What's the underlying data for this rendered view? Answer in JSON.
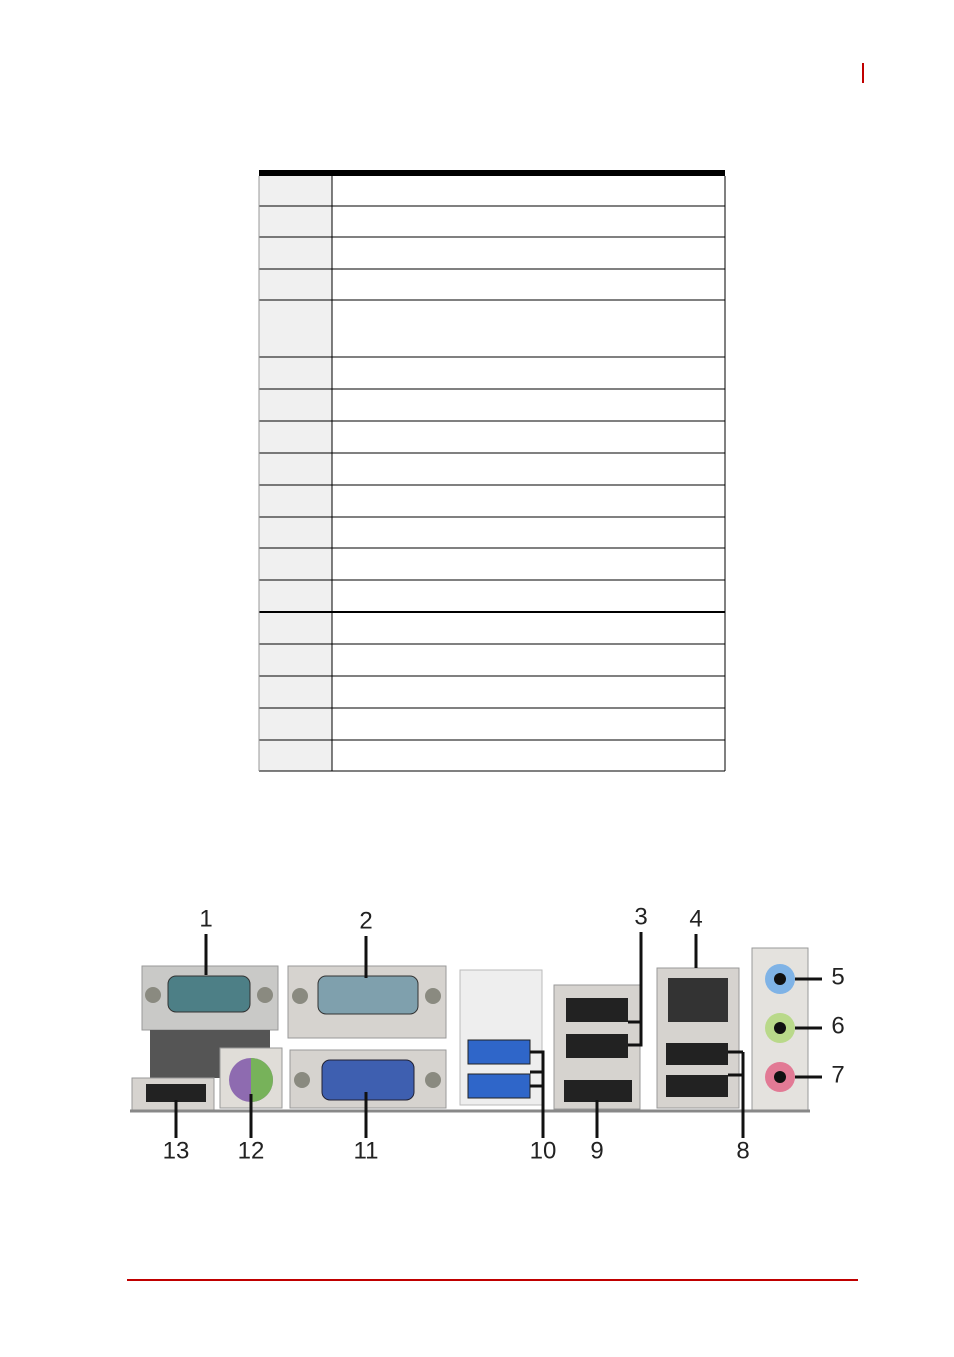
{
  "callouts": [
    "1",
    "2",
    "3",
    "4",
    "5",
    "6",
    "7",
    "8",
    "9",
    "10",
    "11",
    "12",
    "13"
  ]
}
